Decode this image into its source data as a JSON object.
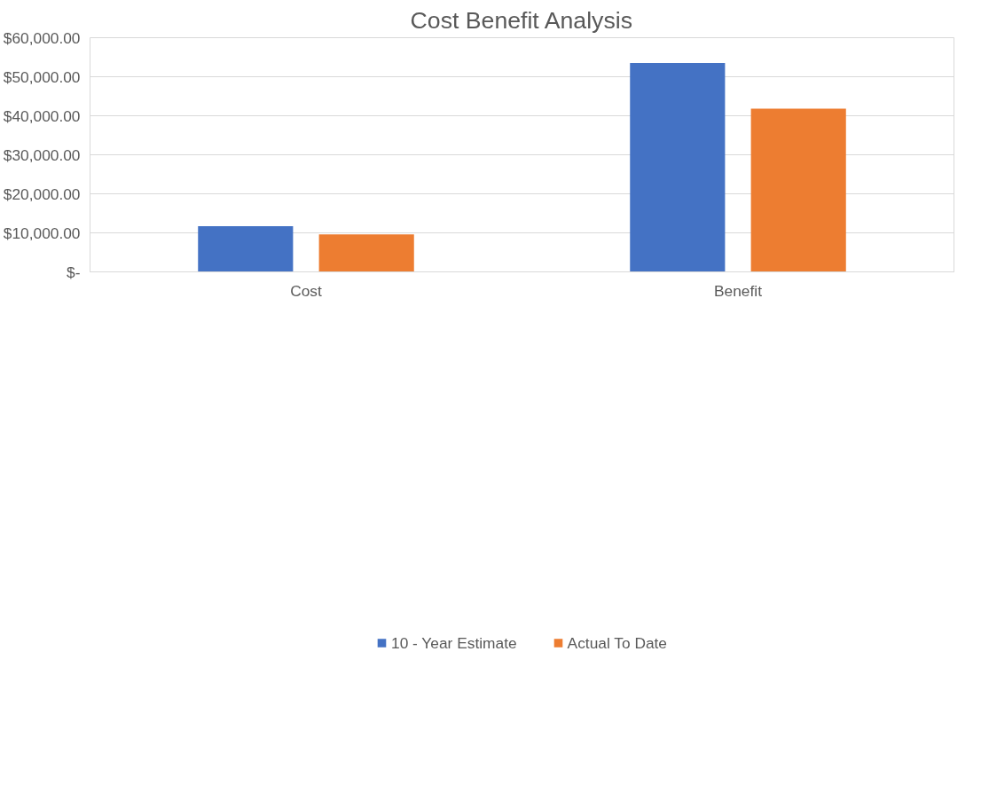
{
  "chart_data": {
    "type": "bar",
    "title": "Cost Benefit Analysis",
    "categories": [
      "Cost",
      "Benefit"
    ],
    "series": [
      {
        "name": "10 - Year Estimate",
        "color": "#4472c4",
        "values": [
          11700,
          53500
        ]
      },
      {
        "name": "Actual To Date",
        "color": "#ed7d31",
        "values": [
          9600,
          41800
        ]
      }
    ],
    "ylim": [
      0,
      60000
    ],
    "yticks": [
      {
        "value": 0,
        "label": "$-"
      },
      {
        "value": 10000,
        "label": "$10,000.00"
      },
      {
        "value": 20000,
        "label": "$20,000.00"
      },
      {
        "value": 30000,
        "label": "$30,000.00"
      },
      {
        "value": 40000,
        "label": "$40,000.00"
      },
      {
        "value": 50000,
        "label": "$50,000.00"
      },
      {
        "value": 60000,
        "label": "$60,000.00"
      }
    ],
    "grid": "y",
    "legend": "bottom"
  }
}
